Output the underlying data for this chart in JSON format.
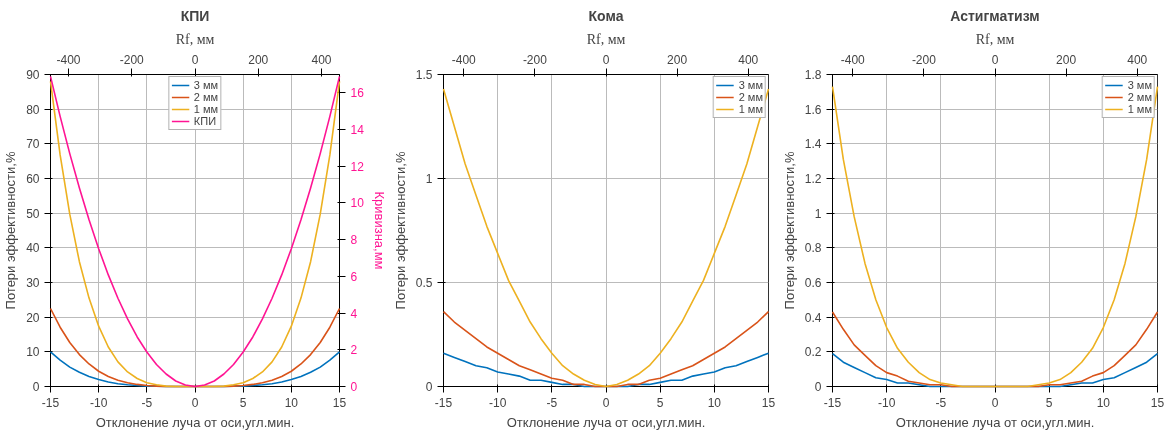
{
  "chart_data": [
    {
      "type": "line",
      "title": "КПИ",
      "xlabel": "Отклонение луча от оси,угл.мин.",
      "ylabel": "Потери эффективности,%",
      "y2label": "Кривизна,мм",
      "x2label": "Rf, мм",
      "x": [
        -15,
        -14,
        -13,
        -12,
        -11,
        -10,
        -9,
        -8,
        -7,
        -6,
        -5,
        -4,
        -3,
        -2,
        -1,
        0,
        1,
        2,
        3,
        4,
        5,
        6,
        7,
        8,
        9,
        10,
        11,
        12,
        13,
        14,
        15
      ],
      "xlim": [
        -15,
        15
      ],
      "xticks": [
        -15,
        -10,
        -5,
        0,
        5,
        10,
        15
      ],
      "x2lim": [
        -457,
        457
      ],
      "x2ticks": [
        -400,
        -200,
        0,
        200,
        400
      ],
      "ylim": [
        0,
        90
      ],
      "yticks": [
        0,
        10,
        20,
        30,
        40,
        50,
        60,
        70,
        80,
        90
      ],
      "y2lim": [
        0,
        17
      ],
      "y2ticks": [
        0,
        2,
        4,
        6,
        8,
        10,
        12,
        14,
        16
      ],
      "grid": true,
      "legend": "top",
      "line_style": "solid",
      "marker": "none",
      "series": [
        {
          "name": "3 мм",
          "color": "#0072bd",
          "values": [
            10,
            7.6,
            5.6,
            4.1,
            2.9,
            2,
            1.3,
            0.8,
            0.5,
            0.3,
            0.1,
            0.1,
            0,
            0,
            0,
            0,
            0,
            0,
            0,
            0.1,
            0.1,
            0.3,
            0.5,
            0.8,
            1.3,
            2,
            2.9,
            4.1,
            5.6,
            7.6,
            10
          ]
        },
        {
          "name": "2 мм",
          "color": "#d95319",
          "values": [
            22.5,
            17.1,
            12.7,
            9.2,
            6.5,
            4.4,
            2.9,
            1.8,
            1.1,
            0.6,
            0.3,
            0.1,
            0,
            0,
            0,
            0,
            0,
            0,
            0,
            0.1,
            0.3,
            0.6,
            1.1,
            1.8,
            2.9,
            4.4,
            6.5,
            9.2,
            12.7,
            17.1,
            22.5
          ]
        },
        {
          "name": "1 мм",
          "color": "#edb120",
          "values": [
            88,
            66.8,
            49.7,
            36,
            25.5,
            17.4,
            11.4,
            7.1,
            4.2,
            2.3,
            1.1,
            0.5,
            0.1,
            0,
            0,
            0,
            0,
            0,
            0.1,
            0.5,
            1.1,
            2.3,
            4.2,
            7.1,
            11.4,
            17.4,
            25.5,
            36,
            49.7,
            66.8,
            88
          ]
        },
        {
          "name": "КПИ",
          "color": "#ff1493",
          "axis": "y2",
          "values": [
            16.9,
            14.72,
            12.69,
            10.82,
            9.09,
            7.51,
            6.08,
            4.81,
            3.68,
            2.7,
            1.88,
            1.2,
            0.68,
            0.3,
            0.08,
            0,
            0.08,
            0.3,
            0.68,
            1.2,
            1.88,
            2.7,
            3.68,
            4.81,
            6.08,
            7.51,
            9.09,
            10.82,
            12.69,
            14.72,
            16.9
          ]
        }
      ]
    },
    {
      "type": "line",
      "title": "Кома",
      "xlabel": "Отклонение луча от оси,угл.мин.",
      "ylabel": "Потери эффективности,%",
      "x2label": "Rf, мм",
      "x": [
        -15,
        -14,
        -13,
        -12,
        -11,
        -10,
        -9,
        -8,
        -7,
        -6,
        -5,
        -4,
        -3,
        -2,
        -1,
        0,
        1,
        2,
        3,
        4,
        5,
        6,
        7,
        8,
        9,
        10,
        11,
        12,
        13,
        14,
        15
      ],
      "xlim": [
        -15,
        15
      ],
      "xticks": [
        -15,
        -10,
        -5,
        0,
        5,
        10,
        15
      ],
      "x2lim": [
        -457,
        457
      ],
      "x2ticks": [
        -400,
        -200,
        0,
        200,
        400
      ],
      "ylim": [
        0,
        1.5
      ],
      "yticks": [
        0,
        0.5,
        1,
        1.5
      ],
      "grid": true,
      "legend": "top right",
      "line_style": "solid",
      "marker": "none",
      "series": [
        {
          "name": "3 мм",
          "color": "#0072bd",
          "values": [
            0.16,
            0.14,
            0.12,
            0.1,
            0.09,
            0.07,
            0.06,
            0.05,
            0.03,
            0.03,
            0.02,
            0.01,
            0.01,
            0,
            0,
            0,
            0,
            0,
            0.01,
            0.01,
            0.02,
            0.03,
            0.03,
            0.05,
            0.06,
            0.07,
            0.09,
            0.1,
            0.12,
            0.14,
            0.16
          ]
        },
        {
          "name": "2 мм",
          "color": "#d95319",
          "values": [
            0.36,
            0.31,
            0.27,
            0.23,
            0.19,
            0.16,
            0.13,
            0.1,
            0.08,
            0.06,
            0.04,
            0.03,
            0.01,
            0.01,
            0,
            0,
            0,
            0.01,
            0.01,
            0.03,
            0.04,
            0.06,
            0.08,
            0.1,
            0.13,
            0.16,
            0.19,
            0.23,
            0.27,
            0.31,
            0.36
          ]
        },
        {
          "name": "1 мм",
          "color": "#edb120",
          "values": [
            1.43,
            1.25,
            1.07,
            0.92,
            0.77,
            0.64,
            0.51,
            0.41,
            0.31,
            0.23,
            0.16,
            0.1,
            0.06,
            0.03,
            0.01,
            0,
            0.01,
            0.03,
            0.06,
            0.1,
            0.16,
            0.23,
            0.31,
            0.41,
            0.51,
            0.64,
            0.77,
            0.92,
            1.07,
            1.25,
            1.43
          ]
        }
      ]
    },
    {
      "type": "line",
      "title": "Астигматизм",
      "xlabel": "Отклонение луча от оси,угл.мин.",
      "ylabel": "Потери эффективности,%",
      "x2label": "Rf, мм",
      "x": [
        -15,
        -14,
        -13,
        -12,
        -11,
        -10,
        -9,
        -8,
        -7,
        -6,
        -5,
        -4,
        -3,
        -2,
        -1,
        0,
        1,
        2,
        3,
        4,
        5,
        6,
        7,
        8,
        9,
        10,
        11,
        12,
        13,
        14,
        15
      ],
      "xlim": [
        -15,
        15
      ],
      "xticks": [
        -15,
        -10,
        -5,
        0,
        5,
        10,
        15
      ],
      "x2lim": [
        -457,
        457
      ],
      "x2ticks": [
        -400,
        -200,
        0,
        200,
        400
      ],
      "ylim": [
        0,
        1.8
      ],
      "yticks": [
        0,
        0.2,
        0.4,
        0.6,
        0.8,
        1,
        1.2,
        1.4,
        1.6,
        1.8
      ],
      "grid": true,
      "legend": "top right",
      "line_style": "solid",
      "marker": "none",
      "series": [
        {
          "name": "3 мм",
          "color": "#0072bd",
          "values": [
            0.19,
            0.14,
            0.11,
            0.08,
            0.05,
            0.04,
            0.02,
            0.02,
            0.01,
            0,
            0,
            0,
            0,
            0,
            0,
            0,
            0,
            0,
            0,
            0,
            0,
            0,
            0.01,
            0.02,
            0.02,
            0.04,
            0.05,
            0.08,
            0.11,
            0.14,
            0.19
          ]
        },
        {
          "name": "2 мм",
          "color": "#d95319",
          "values": [
            0.43,
            0.33,
            0.24,
            0.18,
            0.12,
            0.08,
            0.06,
            0.03,
            0.02,
            0.01,
            0.01,
            0,
            0,
            0,
            0,
            0,
            0,
            0,
            0,
            0,
            0.01,
            0.01,
            0.02,
            0.03,
            0.06,
            0.08,
            0.12,
            0.18,
            0.24,
            0.33,
            0.43
          ]
        },
        {
          "name": "1 мм",
          "color": "#edb120",
          "values": [
            1.73,
            1.31,
            0.98,
            0.71,
            0.5,
            0.34,
            0.22,
            0.14,
            0.08,
            0.04,
            0.02,
            0.01,
            0,
            0,
            0,
            0,
            0,
            0,
            0,
            0.01,
            0.02,
            0.04,
            0.08,
            0.14,
            0.22,
            0.34,
            0.5,
            0.71,
            0.98,
            1.31,
            1.73
          ]
        }
      ]
    }
  ]
}
